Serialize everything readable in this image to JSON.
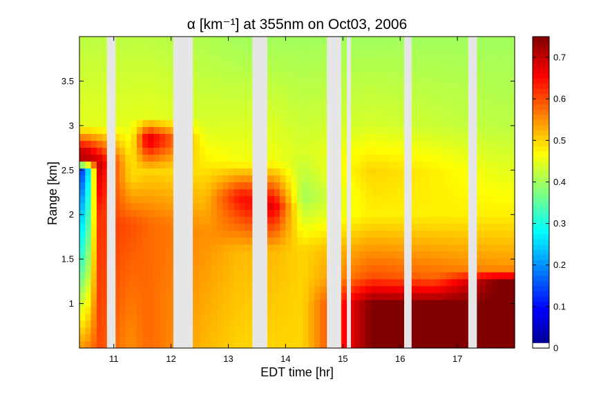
{
  "chart_data": {
    "type": "heatmap",
    "title": "α [km⁻¹] at 355nm on Oct03, 2006",
    "xlabel": "EDT time [hr]",
    "ylabel": "Range [km]",
    "xlim": [
      10.4,
      18.0
    ],
    "ylim": [
      0.5,
      4.0
    ],
    "x_ticks": [
      "11",
      "12",
      "13",
      "14",
      "15",
      "16",
      "17"
    ],
    "y_ticks": [
      "1",
      "1.5",
      "2",
      "2.5",
      "3",
      "3.5"
    ],
    "colorbar": {
      "min": 0,
      "max": 0.75,
      "ticks": [
        "0",
        "0.1",
        "0.2",
        "0.3",
        "0.4",
        "0.5",
        "0.6",
        "0.7"
      ],
      "colormap": "jet",
      "no_data_color": "#e6e6e6"
    },
    "data_gaps_hr": [
      [
        10.88,
        11.03
      ],
      [
        12.04,
        12.38
      ],
      [
        13.42,
        13.68
      ],
      [
        14.72,
        14.97
      ],
      [
        15.07,
        15.14
      ],
      [
        16.07,
        16.2
      ],
      [
        17.19,
        17.34
      ]
    ],
    "profiles": [
      {
        "t": 10.5,
        "layers": [
          [
            0.5,
            0.55
          ],
          [
            1.4,
            0.35
          ],
          [
            2.0,
            0.25
          ],
          [
            2.5,
            0.15
          ],
          [
            2.65,
            0.75
          ],
          [
            3.0,
            0.45
          ],
          [
            4.0,
            0.42
          ]
        ]
      },
      {
        "t": 10.75,
        "layers": [
          [
            0.5,
            0.6
          ],
          [
            2.0,
            0.62
          ],
          [
            2.6,
            0.7
          ],
          [
            3.0,
            0.45
          ],
          [
            4.0,
            0.42
          ]
        ]
      },
      {
        "t": 11.3,
        "layers": [
          [
            0.5,
            0.55
          ],
          [
            1.9,
            0.6
          ],
          [
            2.4,
            0.5
          ],
          [
            3.0,
            0.45
          ],
          [
            4.0,
            0.42
          ]
        ]
      },
      {
        "t": 11.6,
        "layers": [
          [
            0.5,
            0.58
          ],
          [
            1.9,
            0.58
          ],
          [
            2.5,
            0.5
          ],
          [
            2.85,
            0.7
          ],
          [
            3.1,
            0.45
          ],
          [
            4.0,
            0.42
          ]
        ]
      },
      {
        "t": 12.6,
        "layers": [
          [
            0.5,
            0.52
          ],
          [
            1.8,
            0.55
          ],
          [
            2.4,
            0.5
          ],
          [
            3.0,
            0.44
          ],
          [
            4.0,
            0.41
          ]
        ]
      },
      {
        "t": 13.2,
        "layers": [
          [
            0.5,
            0.5
          ],
          [
            1.6,
            0.52
          ],
          [
            2.2,
            0.65
          ],
          [
            2.6,
            0.46
          ],
          [
            4.0,
            0.4
          ]
        ]
      },
      {
        "t": 13.8,
        "layers": [
          [
            0.5,
            0.5
          ],
          [
            1.6,
            0.52
          ],
          [
            2.1,
            0.68
          ],
          [
            2.6,
            0.46
          ],
          [
            4.0,
            0.4
          ]
        ]
      },
      {
        "t": 14.3,
        "layers": [
          [
            0.5,
            0.5
          ],
          [
            1.6,
            0.5
          ],
          [
            2.2,
            0.4
          ],
          [
            2.7,
            0.44
          ],
          [
            4.0,
            0.4
          ]
        ]
      },
      {
        "t": 15.5,
        "layers": [
          [
            0.5,
            0.75
          ],
          [
            1.0,
            0.75
          ],
          [
            1.3,
            0.6
          ],
          [
            2.0,
            0.48
          ],
          [
            2.5,
            0.5
          ],
          [
            3.0,
            0.44
          ],
          [
            4.0,
            0.4
          ]
        ]
      },
      {
        "t": 16.6,
        "layers": [
          [
            0.5,
            0.75
          ],
          [
            1.0,
            0.75
          ],
          [
            1.3,
            0.58
          ],
          [
            2.0,
            0.48
          ],
          [
            2.5,
            0.48
          ],
          [
            3.0,
            0.43
          ],
          [
            4.0,
            0.4
          ]
        ]
      },
      {
        "t": 17.7,
        "layers": [
          [
            0.5,
            0.75
          ],
          [
            1.25,
            0.75
          ],
          [
            1.4,
            0.55
          ],
          [
            2.0,
            0.48
          ],
          [
            3.0,
            0.42
          ],
          [
            4.0,
            0.4
          ]
        ]
      }
    ]
  }
}
